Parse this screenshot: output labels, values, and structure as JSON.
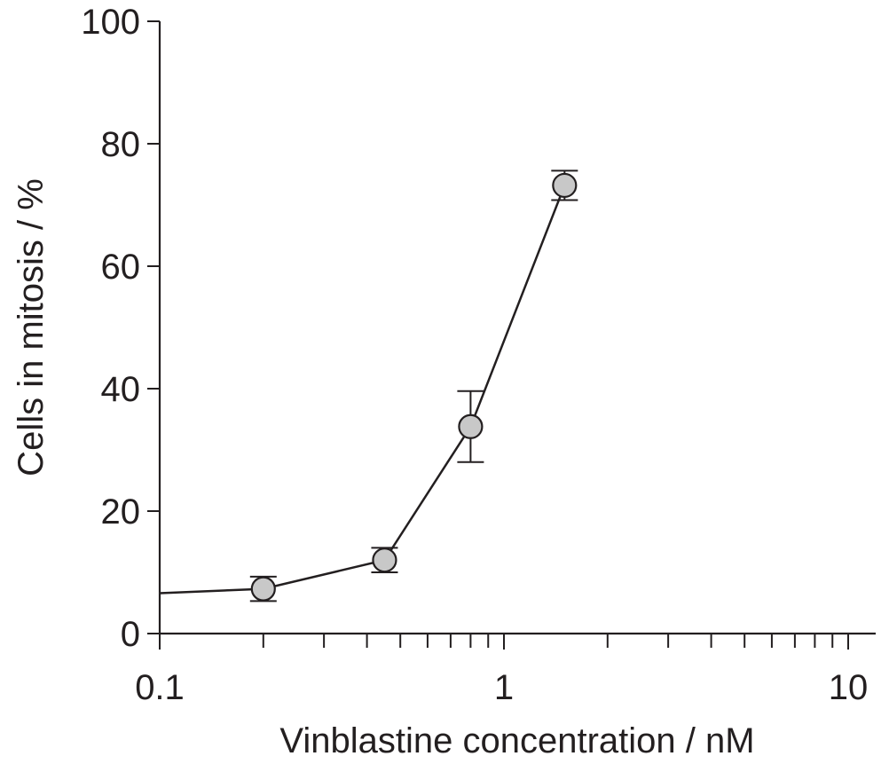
{
  "chart_data": {
    "type": "line",
    "title": "",
    "xlabel": "Vinblastine concentration / nM",
    "ylabel": "Cells in mitosis / %",
    "x_scale": "log",
    "xlim": [
      0.1,
      10
    ],
    "ylim": [
      0,
      100
    ],
    "x_ticks": [
      0.1,
      1,
      10
    ],
    "x_tick_labels": [
      "0.1",
      "1",
      "10"
    ],
    "y_ticks": [
      0,
      20,
      40,
      60,
      80,
      100
    ],
    "y_tick_labels": [
      "0",
      "20",
      "40",
      "60",
      "80",
      "100"
    ],
    "grid": false,
    "legend": "none",
    "line_start": {
      "x": 0.1,
      "y": 6.6
    },
    "series": [
      {
        "x": [
          0.2,
          0.45,
          0.8,
          1.5
        ],
        "y": [
          7.3,
          12.0,
          33.8,
          73.2
        ],
        "error": [
          2.0,
          2.0,
          5.8,
          2.4
        ]
      }
    ],
    "colors": {
      "axis": "#231f20",
      "line": "#231f20",
      "marker_fill": "#c8c8c8",
      "marker_stroke": "#231f20"
    }
  }
}
